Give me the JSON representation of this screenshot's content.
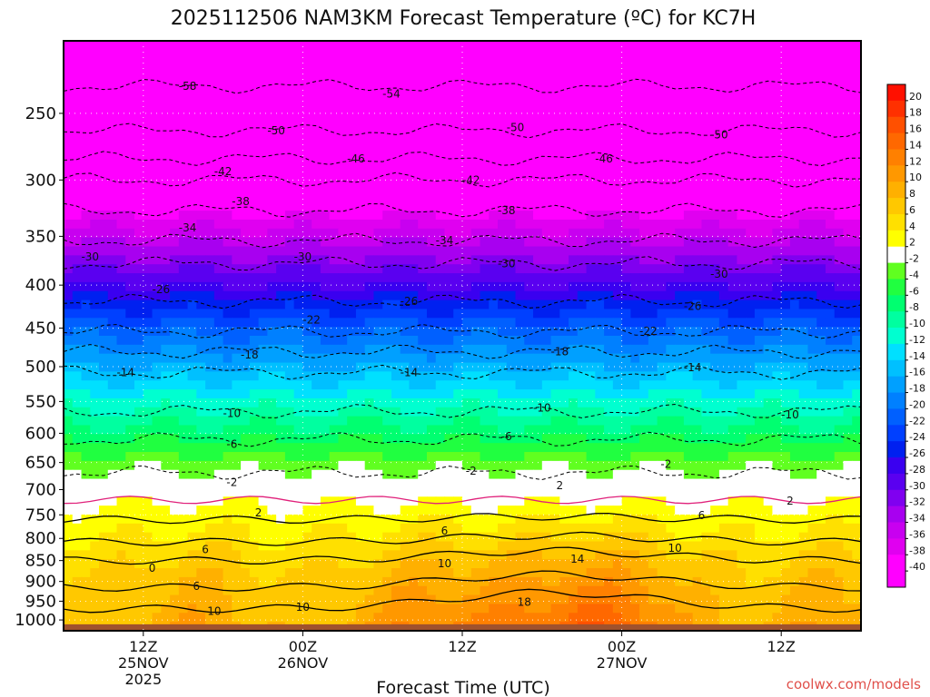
{
  "chart_data": {
    "type": "heatmap",
    "title": "2025112506 NAM3KM Forecast Temperature (ºC) for KC7H",
    "xlabel": "Forecast Time (UTC)",
    "ylabel": "",
    "y_scale": "log",
    "y_axis_unit": "hPa",
    "y_inverted": true,
    "ylim": [
      1030,
      205
    ],
    "y_ticks": [
      "250",
      "300",
      "350",
      "400",
      "450",
      "500",
      "550",
      "600",
      "650",
      "700",
      "750",
      "800",
      "850",
      "900",
      "950",
      "1000"
    ],
    "x_ticks": [
      {
        "hour": 12,
        "lines": [
          "12Z",
          "25NOV",
          "2025"
        ]
      },
      {
        "hour": 30,
        "lines": [
          "00Z",
          "26NOV"
        ]
      },
      {
        "hour": 48,
        "lines": [
          "12Z"
        ]
      },
      {
        "hour": 66,
        "lines": [
          "00Z",
          "27NOV"
        ]
      },
      {
        "hour": 84,
        "lines": [
          "12Z"
        ]
      }
    ],
    "xlim": [
      3,
      93
    ],
    "grid": true,
    "temperature_profile": {
      "pressure_hpa": [
        205,
        250,
        300,
        350,
        400,
        450,
        500,
        550,
        600,
        650,
        700,
        750,
        800,
        850,
        900,
        950,
        1000,
        1030
      ],
      "temp_c": [
        -57,
        -51,
        -43,
        -35,
        -28,
        -21,
        -16,
        -11,
        -7,
        -3,
        0.5,
        3,
        5,
        7,
        8.5,
        9.5,
        10.5,
        11
      ]
    },
    "contour_labels": [
      {
        "text": "-58",
        "hour": 17,
        "p": 232
      },
      {
        "text": "-54",
        "hour": 40,
        "p": 237
      },
      {
        "text": "-50",
        "hour": 27,
        "p": 262
      },
      {
        "text": "-50",
        "hour": 54,
        "p": 260
      },
      {
        "text": "-50",
        "hour": 77,
        "p": 265
      },
      {
        "text": "-46",
        "hour": 36,
        "p": 283
      },
      {
        "text": "-46",
        "hour": 64,
        "p": 283
      },
      {
        "text": "-42",
        "hour": 21,
        "p": 293
      },
      {
        "text": "-42",
        "hour": 49,
        "p": 300
      },
      {
        "text": "-38",
        "hour": 23,
        "p": 318
      },
      {
        "text": "-38",
        "hour": 53,
        "p": 326
      },
      {
        "text": "-34",
        "hour": 17,
        "p": 342
      },
      {
        "text": "-34",
        "hour": 46,
        "p": 354
      },
      {
        "text": "-30",
        "hour": 6,
        "p": 370
      },
      {
        "text": "-30",
        "hour": 30,
        "p": 370
      },
      {
        "text": "-30",
        "hour": 53,
        "p": 377
      },
      {
        "text": "-30",
        "hour": 77,
        "p": 388
      },
      {
        "text": "-26",
        "hour": 14,
        "p": 405
      },
      {
        "text": "-26",
        "hour": 42,
        "p": 418
      },
      {
        "text": "-26",
        "hour": 74,
        "p": 424
      },
      {
        "text": "-22",
        "hour": 31,
        "p": 440
      },
      {
        "text": "-22",
        "hour": 69,
        "p": 454
      },
      {
        "text": "-18",
        "hour": 24,
        "p": 484
      },
      {
        "text": "-18",
        "hour": 59,
        "p": 480
      },
      {
        "text": "-14",
        "hour": 10,
        "p": 508
      },
      {
        "text": "-14",
        "hour": 42,
        "p": 508
      },
      {
        "text": "-14",
        "hour": 74,
        "p": 501
      },
      {
        "text": "-10",
        "hour": 22,
        "p": 568
      },
      {
        "text": "-10",
        "hour": 57,
        "p": 560
      },
      {
        "text": "-10",
        "hour": 85,
        "p": 570
      },
      {
        "text": "-6",
        "hour": 22,
        "p": 618
      },
      {
        "text": "-6",
        "hour": 53,
        "p": 605
      },
      {
        "text": "-2",
        "hour": 22,
        "p": 686
      },
      {
        "text": "-2",
        "hour": 49,
        "p": 665
      },
      {
        "text": "-2",
        "hour": 71,
        "p": 653
      },
      {
        "text": "2",
        "hour": 25,
        "p": 746
      },
      {
        "text": "2",
        "hour": 59,
        "p": 692
      },
      {
        "text": "2",
        "hour": 85,
        "p": 722
      },
      {
        "text": "6",
        "hour": 19,
        "p": 825
      },
      {
        "text": "6",
        "hour": 46,
        "p": 784
      },
      {
        "text": "6",
        "hour": 75,
        "p": 751
      },
      {
        "text": "6",
        "hour": 18,
        "p": 912
      },
      {
        "text": "10",
        "hour": 20,
        "p": 977
      },
      {
        "text": "10",
        "hour": 30,
        "p": 965
      },
      {
        "text": "10",
        "hour": 46,
        "p": 857
      },
      {
        "text": "10",
        "hour": 72,
        "p": 822
      },
      {
        "text": "14",
        "hour": 61,
        "p": 846
      },
      {
        "text": "18",
        "hour": 55,
        "p": 953
      },
      {
        "text": "0",
        "hour": 13,
        "p": 868
      }
    ],
    "colorbar_ticks": [
      "20",
      "18",
      "16",
      "14",
      "12",
      "10",
      "8",
      "6",
      "4",
      "2",
      "-2",
      "-4",
      "-6",
      "-8",
      "-10",
      "-12",
      "-14",
      "-16",
      "-18",
      "-20",
      "-22",
      "-24",
      "-26",
      "-28",
      "-30",
      "-32",
      "-34",
      "-36",
      "-38",
      "-40"
    ],
    "credit": "coolwx.com/models"
  }
}
